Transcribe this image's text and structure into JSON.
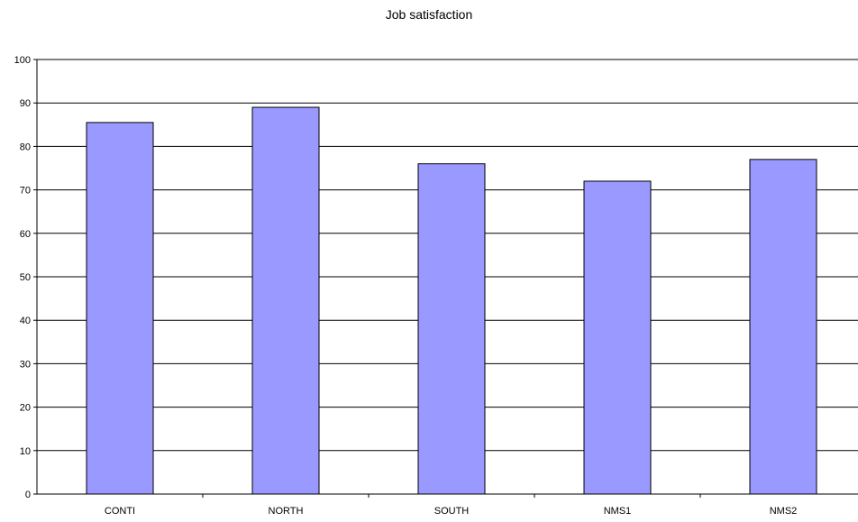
{
  "chart_data": {
    "type": "bar",
    "title": "Job satisfaction",
    "categories": [
      "CONTI",
      "NORTH",
      "SOUTH",
      "NMS1",
      "NMS2"
    ],
    "values": [
      85.5,
      89,
      76,
      72,
      77
    ],
    "ylim": [
      0,
      100
    ],
    "yticks": [
      0,
      10,
      20,
      30,
      40,
      50,
      60,
      70,
      80,
      90,
      100
    ],
    "grid": true,
    "legend": "none",
    "bar_color": "#9999ff",
    "bar_border_color": "#000000"
  }
}
